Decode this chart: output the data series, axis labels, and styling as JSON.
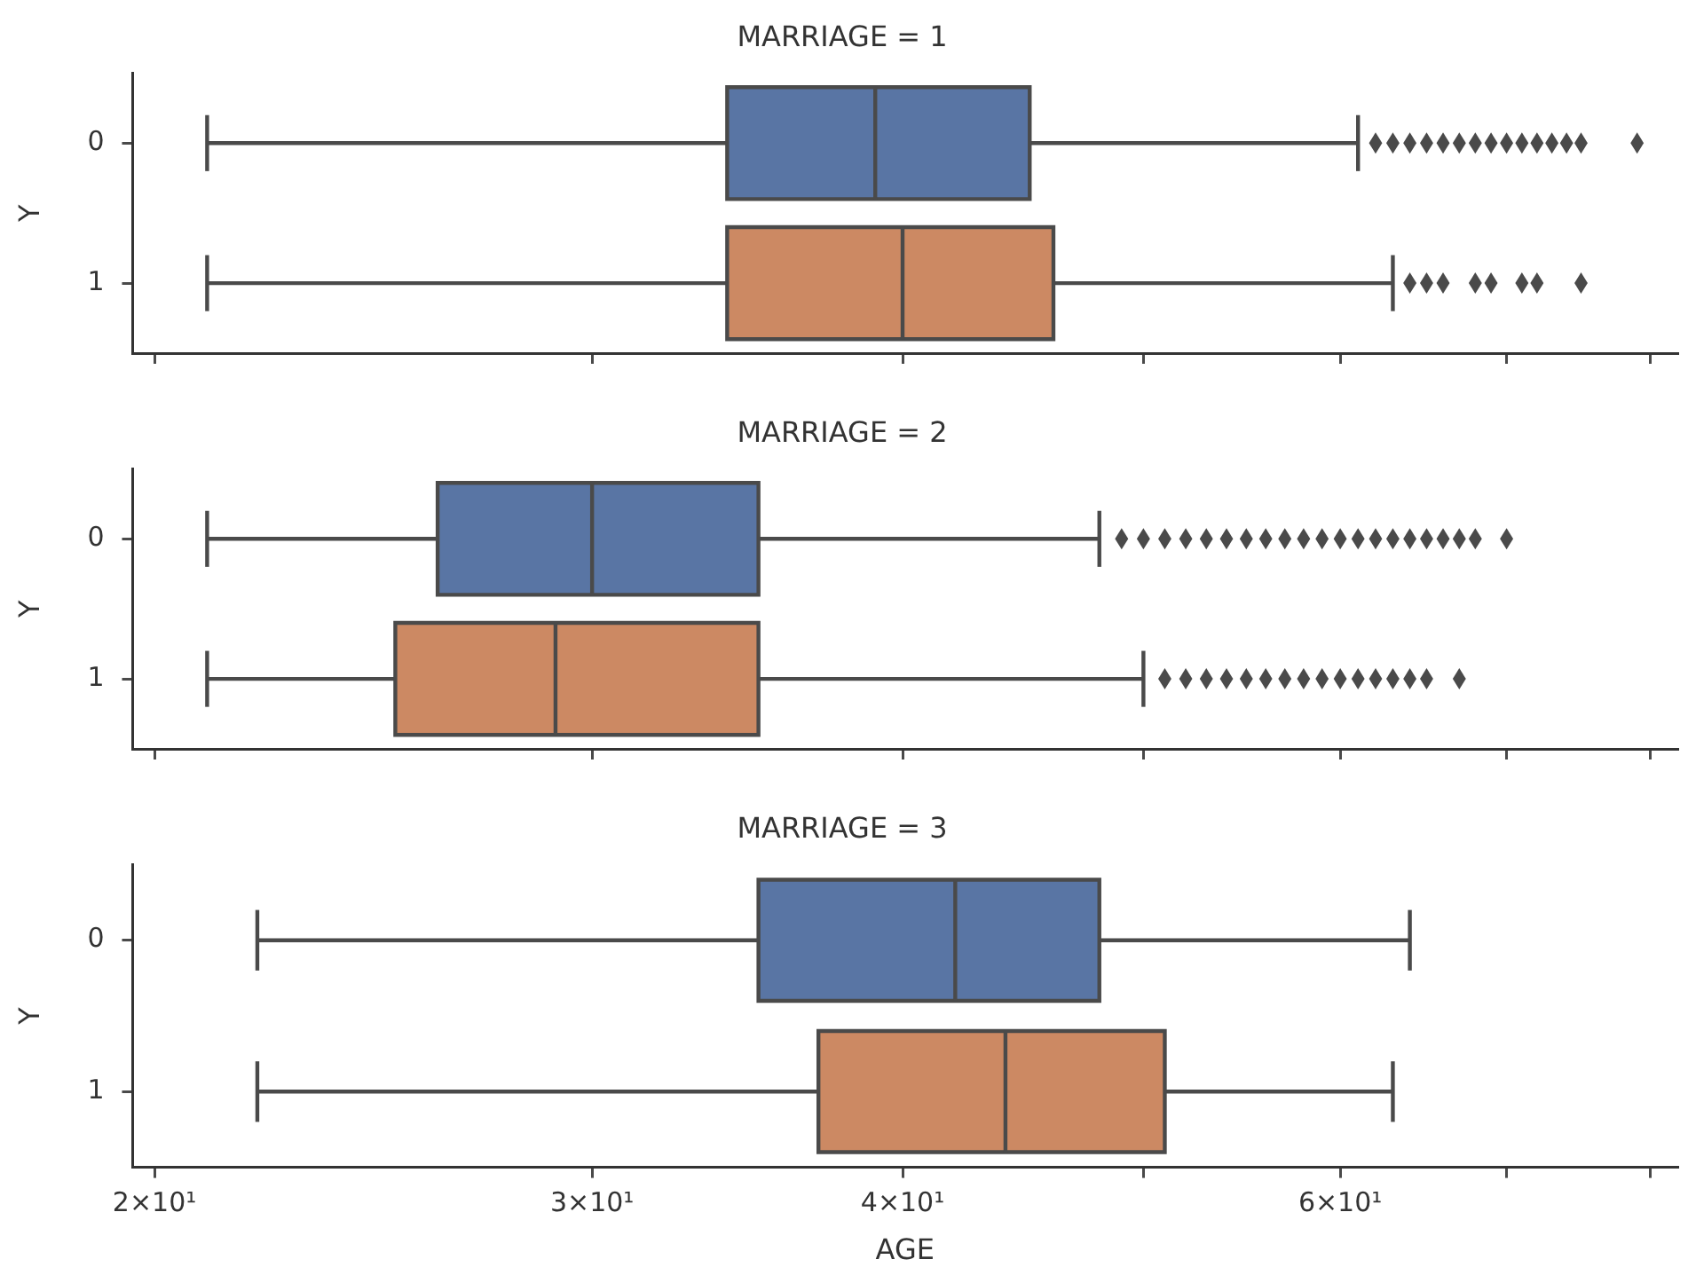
{
  "chart_data": [
    {
      "type": "box",
      "title": "MARRIAGE = 1",
      "ylabel": "Y",
      "orientation": "horizontal",
      "log": "x",
      "categories": [
        "0",
        "1"
      ],
      "colors": [
        "#5975a4",
        "#cc8963"
      ],
      "boxes": [
        {
          "low": 21,
          "q1": 34,
          "median": 39,
          "q3": 45,
          "high": 61,
          "outliers": [
            62,
            63,
            64,
            65,
            66,
            67,
            68,
            69,
            70,
            71,
            72,
            73,
            74,
            75,
            79
          ]
        },
        {
          "low": 21,
          "q1": 34,
          "median": 40,
          "q3": 46,
          "high": 63,
          "outliers": [
            64,
            65,
            66,
            68,
            69,
            71,
            72,
            75
          ]
        }
      ],
      "xlim": [
        19.6,
        82
      ],
      "xticks": [
        {
          "value": 20,
          "label": null
        },
        {
          "value": 30,
          "label": null
        },
        {
          "value": 40,
          "label": null
        },
        {
          "value": 50,
          "label": null
        },
        {
          "value": 60,
          "label": null
        },
        {
          "value": 70,
          "label": null
        },
        {
          "value": 80,
          "label": null
        }
      ],
      "tick_labels": "y",
      "grid": false,
      "legend": false
    },
    {
      "type": "box",
      "title": "MARRIAGE = 2",
      "ylabel": "Y",
      "orientation": "horizontal",
      "log": "x",
      "categories": [
        "0",
        "1"
      ],
      "colors": [
        "#5975a4",
        "#cc8963"
      ],
      "boxes": [
        {
          "low": 21,
          "q1": 26,
          "median": 30,
          "q3": 35,
          "high": 48,
          "outliers": [
            49,
            50,
            51,
            52,
            53,
            54,
            55,
            56,
            57,
            58,
            59,
            60,
            61,
            62,
            63,
            64,
            65,
            66,
            67,
            68,
            70
          ]
        },
        {
          "low": 21,
          "q1": 25,
          "median": 29,
          "q3": 35,
          "high": 50,
          "outliers": [
            51,
            52,
            53,
            54,
            55,
            56,
            57,
            58,
            59,
            60,
            61,
            62,
            63,
            64,
            65,
            67
          ]
        }
      ],
      "xlim": [
        19.6,
        82
      ],
      "xticks": [
        {
          "value": 20,
          "label": null
        },
        {
          "value": 30,
          "label": null
        },
        {
          "value": 40,
          "label": null
        },
        {
          "value": 50,
          "label": null
        },
        {
          "value": 60,
          "label": null
        },
        {
          "value": 70,
          "label": null
        },
        {
          "value": 80,
          "label": null
        }
      ],
      "tick_labels": "y",
      "grid": false,
      "legend": false
    },
    {
      "type": "box",
      "title": "MARRIAGE = 3",
      "xlabel": "AGE",
      "ylabel": "Y",
      "orientation": "horizontal",
      "log": "x",
      "categories": [
        "0",
        "1"
      ],
      "colors": [
        "#5975a4",
        "#cc8963"
      ],
      "boxes": [
        {
          "low": 22,
          "q1": 35,
          "median": 42,
          "q3": 48,
          "high": 64
        },
        {
          "low": 22,
          "q1": 37,
          "median": 44,
          "q3": 51,
          "high": 63
        }
      ],
      "xlim": [
        19.6,
        82
      ],
      "xticks": [
        {
          "value": 20,
          "label": "2×10¹"
        },
        {
          "value": 30,
          "label": "3×10¹"
        },
        {
          "value": 40,
          "label": "4×10¹"
        },
        {
          "value": 50,
          "label": null
        },
        {
          "value": 60,
          "label": "6×10¹"
        },
        {
          "value": 70,
          "label": null
        },
        {
          "value": 80,
          "label": null
        }
      ],
      "grid": false,
      "legend": false
    }
  ]
}
